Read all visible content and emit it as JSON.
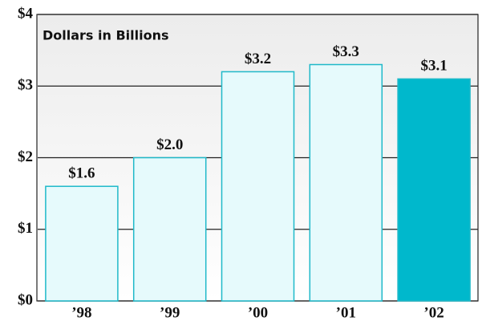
{
  "chart_data": {
    "type": "bar",
    "subtitle": "Dollars in Billions",
    "categories": [
      "’98",
      "’99",
      "’00",
      "’01",
      "’02"
    ],
    "values": [
      1.6,
      2.0,
      3.2,
      3.3,
      3.1
    ],
    "value_labels": [
      "$1.6",
      "$2.0",
      "$3.2",
      "$3.3",
      "$3.1"
    ],
    "colors": [
      "#e6fafc",
      "#e6fafc",
      "#e6fafc",
      "#e6fafc",
      "#00b8cc"
    ],
    "edge_color": "#1fb9c9",
    "ylim": [
      0,
      4
    ],
    "yticks": [
      {
        "value": 0,
        "label": "$0"
      },
      {
        "value": 1,
        "label": "$1"
      },
      {
        "value": 2,
        "label": "$2"
      },
      {
        "value": 3,
        "label": "$3"
      },
      {
        "value": 4,
        "label": "$4"
      }
    ],
    "grid": true
  }
}
